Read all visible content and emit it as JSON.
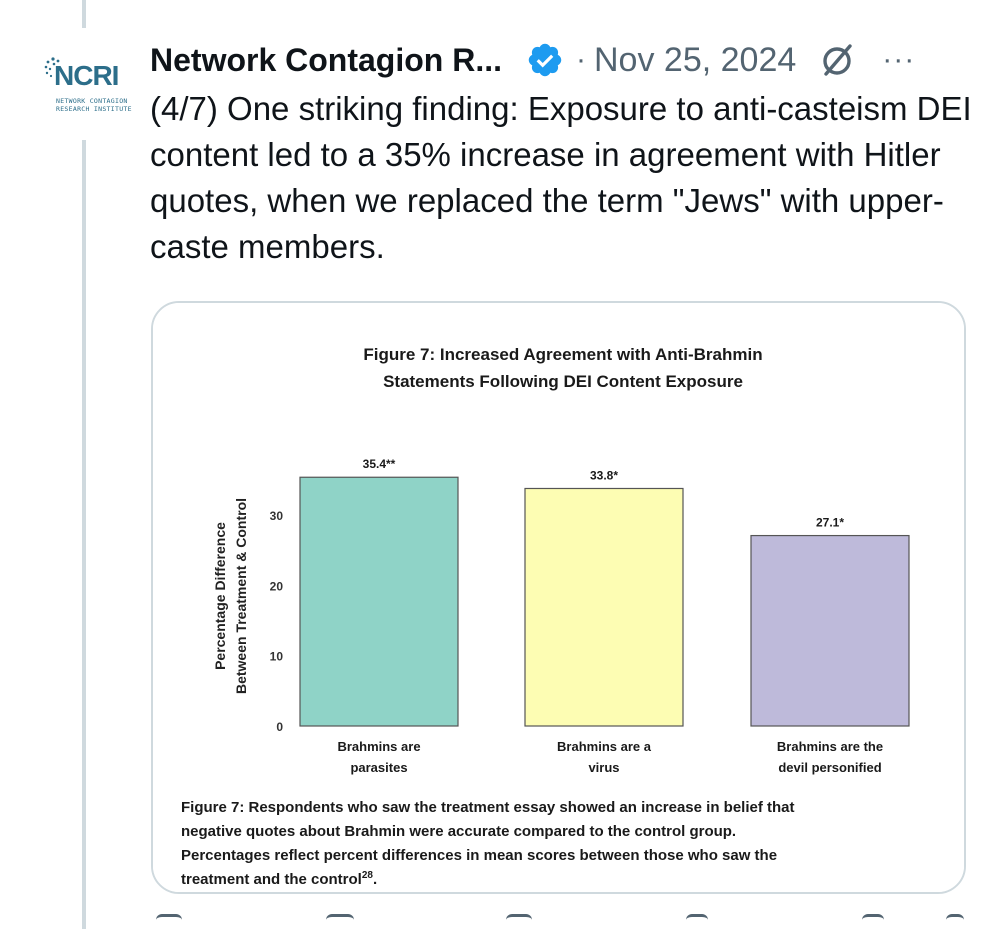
{
  "author": {
    "display_name": "Network Contagion R...",
    "avatar_logo": "NCRI",
    "avatar_sub1": "NETWORK CONTAGION",
    "avatar_sub2": "RESEARCH INSTITUTE"
  },
  "header": {
    "separator": "·",
    "date": "Nov 25, 2024",
    "more_label": "···"
  },
  "icons": {
    "verified": "verified-badge-icon",
    "grok": "grok-icon",
    "more": "more-icon"
  },
  "tweet": {
    "text": "(4/7) One striking finding: Exposure to anti-casteism DEI content led to a 35% increase in agreement with Hitler quotes, when we replaced the term \"Jews\" with upper-caste members."
  },
  "colors": {
    "verified": "#1d9bf0",
    "bar1": "#8fd3c7",
    "bar2": "#fdfdb3",
    "bar3": "#bebada"
  },
  "chart_data": {
    "type": "bar",
    "title_line1": "Figure 7: Increased Agreement with Anti-Brahmin",
    "title_line2": "Statements Following DEI Content Exposure",
    "ylabel_line1": "Percentage Difference",
    "ylabel_line2": "Between Treatment & Control",
    "ylim": [
      0,
      37
    ],
    "yticks": [
      0,
      10,
      20,
      30
    ],
    "categories": [
      [
        "Brahmins are",
        "parasites"
      ],
      [
        "Brahmins are a",
        "virus"
      ],
      [
        "Brahmins are the",
        "devil personified"
      ]
    ],
    "values": [
      35.4,
      33.8,
      27.1
    ],
    "value_labels": [
      "35.4**",
      "33.8*",
      "27.1*"
    ],
    "caption": [
      "Figure 7: Respondents who saw the treatment essay showed an increase in belief that",
      "negative quotes about Brahmin were accurate compared to the control group.",
      "Percentages reflect percent differences in mean scores between those who saw the",
      "treatment and the control"
    ],
    "caption_footnote": "28",
    "caption_end": "."
  }
}
